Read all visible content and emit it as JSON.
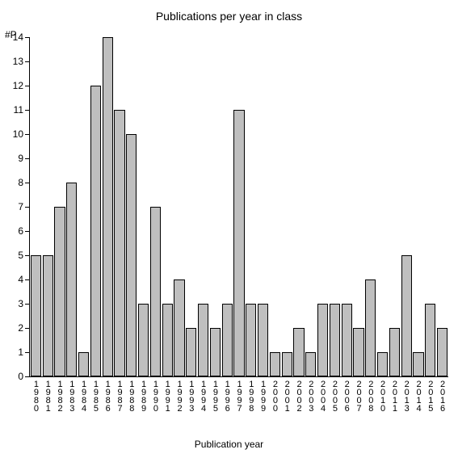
{
  "chart": {
    "type": "bar",
    "title": "Publications per year in class",
    "y_axis_label": "#P",
    "x_axis_label": "Publication year",
    "title_fontsize": 14,
    "label_fontsize": 12,
    "tick_fontsize": 12,
    "background_color": "#ffffff",
    "bar_fill": "#bfbfbf",
    "bar_border": "#000000",
    "axis_color": "#000000",
    "ylim": [
      0,
      14
    ],
    "ytick_step": 1,
    "categories": [
      "1980",
      "1981",
      "1982",
      "1983",
      "1984",
      "1985",
      "1986",
      "1987",
      "1988",
      "1989",
      "1990",
      "1991",
      "1992",
      "1993",
      "1994",
      "1995",
      "1996",
      "1997",
      "1998",
      "1999",
      "2000",
      "2001",
      "2002",
      "2003",
      "2004",
      "2005",
      "2006",
      "2007",
      "2008",
      "2010",
      "2011",
      "2013",
      "2014",
      "2015",
      "2016"
    ],
    "values": [
      5,
      5,
      7,
      8,
      1,
      12,
      14,
      11,
      10,
      3,
      7,
      3,
      4,
      2,
      3,
      2,
      3,
      11,
      3,
      3,
      1,
      1,
      2,
      1,
      3,
      3,
      3,
      2,
      4,
      1,
      2,
      5,
      1,
      3,
      2
    ],
    "bar_gap_ratio": 0.12
  }
}
